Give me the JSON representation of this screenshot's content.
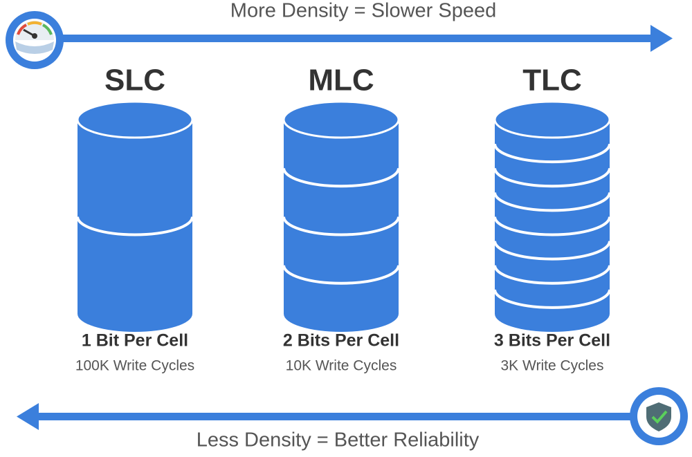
{
  "top_arrow": {
    "label": "More Density = Slower Speed"
  },
  "bottom_arrow": {
    "label": "Less Density = Better Reliability"
  },
  "columns": [
    {
      "title": "SLC",
      "bits": "1 Bit Per Cell",
      "cycles": "100K Write Cycles"
    },
    {
      "title": "MLC",
      "bits": "2 Bits Per Cell",
      "cycles": "10K Write Cycles"
    },
    {
      "title": "TLC",
      "bits": "3 Bits Per Cell",
      "cycles": "3K Write Cycles"
    }
  ]
}
